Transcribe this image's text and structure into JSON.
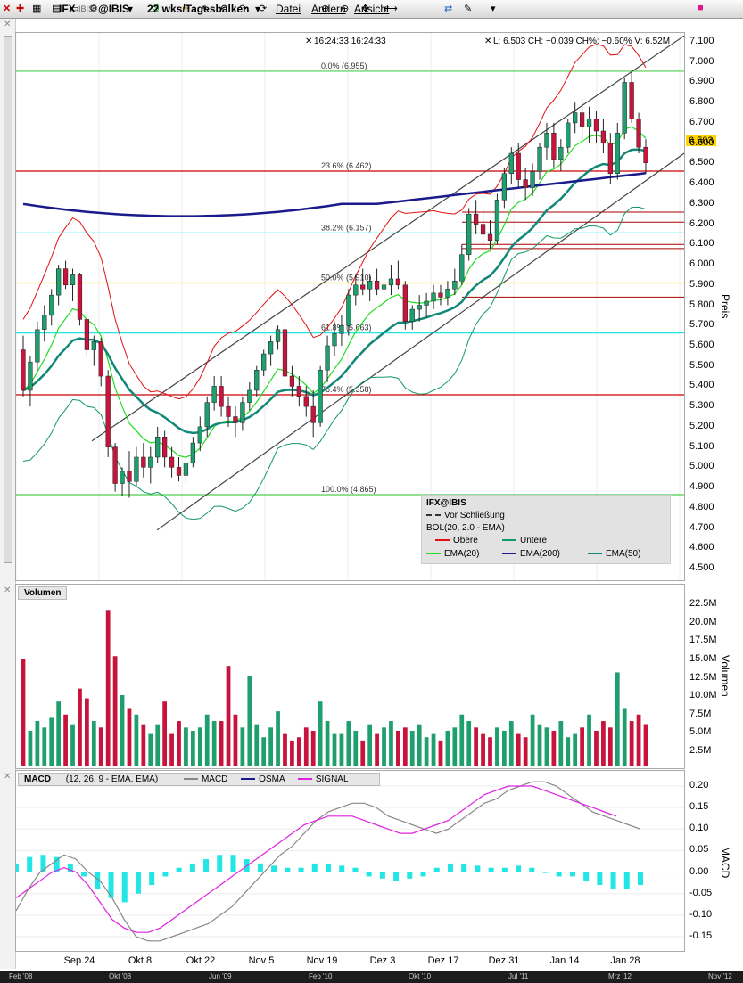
{
  "toolbar": {
    "symbol": "IFX",
    "exchange_small": "IBIS",
    "exchange": "@IBIS",
    "period": "22 wks/Tagesbalken",
    "menu": [
      "Datei",
      "Ändern",
      "Ansicht"
    ]
  },
  "header": {
    "time": "16:24:33 16:24:33",
    "quote": "L: 6.503 CH: −0.039 CH%: −0.60% V: 6.52M",
    "last_price": "6.503"
  },
  "price_axis": {
    "label": "Preis",
    "ticks": [
      "7.100",
      "7.000",
      "6.900",
      "6.800",
      "6.700",
      "6.600",
      "6.500",
      "6.400",
      "6.300",
      "6.200",
      "6.100",
      "6.000",
      "5.900",
      "5.800",
      "5.700",
      "5.600",
      "5.500",
      "5.400",
      "5.300",
      "5.200",
      "5.100",
      "5.000",
      "4.900",
      "4.800",
      "4.700",
      "4.600",
      "4.500"
    ]
  },
  "volume_axis": {
    "label": "Volumen",
    "ticks": [
      "22.5M",
      "20.0M",
      "17.5M",
      "15.0M",
      "12.5M",
      "10.0M",
      "7.5M",
      "5.0M",
      "2.5M"
    ]
  },
  "macd_axis": {
    "label": "MACD",
    "ticks": [
      "0.20",
      "0.15",
      "0.10",
      "0.05",
      "0.00",
      "-0.05",
      "-0.10",
      "-0.15"
    ]
  },
  "panels": {
    "volume_title": "Volumen",
    "macd_title": "MACD",
    "macd_params": "(12, 26, 9 - EMA, EMA)",
    "macd_legend": [
      "MACD",
      "OSMA",
      "SIGNAL"
    ]
  },
  "legend": {
    "title": "IFX@IBIS",
    "prev_close": "Vor Schließung",
    "bol": "BOL(20, 2.0 - EMA)",
    "upper": "Obere",
    "lower": "Untere",
    "ema20": "EMA(20)",
    "ema200": "EMA(200)",
    "ema50": "EMA(50)"
  },
  "fib_levels": [
    {
      "label": "0.0% (6.955)",
      "value": 6.955
    },
    {
      "label": "23.6% (6.462)",
      "value": 6.462
    },
    {
      "label": "38.2% (6.157)",
      "value": 6.157
    },
    {
      "label": "50.0% (5.910)",
      "value": 5.91
    },
    {
      "label": "61.8% (5.663)",
      "value": 5.663
    },
    {
      "label": "76.4% (5.358)",
      "value": 5.358
    },
    {
      "label": "100.0% (4.865)",
      "value": 4.865
    }
  ],
  "date_axis": [
    "Sep 24",
    "Okt 8",
    "Okt 22",
    "Nov 5",
    "Nov 19",
    "Dez 3",
    "Dez 17",
    "Dez 31",
    "Jan 14",
    "Jan 28"
  ],
  "overview_axis": [
    "Feb '08",
    "Okt '08",
    "Jun '09",
    "Feb '10",
    "Okt '10",
    "Jul '11",
    "Mrz '12",
    "Nov '12"
  ],
  "colors": {
    "up": "#1f9e6e",
    "down": "#c8143c",
    "ema20": "#22dd22",
    "ema50": "#118877",
    "ema200": "#1a1a8c",
    "bol_upper": "#e01010",
    "bol_lower": "#119966",
    "macd_line": "#888888",
    "signal": "#e020e0",
    "osma": "#22e6e6"
  },
  "chart_data": {
    "type": "candlestick",
    "ylim": [
      4.5,
      7.1
    ],
    "volume_ylim": [
      0,
      25
    ],
    "macd_ylim": [
      -0.175,
      0.225
    ],
    "candles": [
      [
        5.58,
        5.65,
        5.35,
        5.38
      ],
      [
        5.38,
        5.55,
        5.3,
        5.52
      ],
      [
        5.52,
        5.72,
        5.48,
        5.68
      ],
      [
        5.68,
        5.8,
        5.62,
        5.75
      ],
      [
        5.75,
        5.88,
        5.7,
        5.85
      ],
      [
        5.85,
        6.0,
        5.8,
        5.98
      ],
      [
        5.98,
        6.02,
        5.88,
        5.9
      ],
      [
        5.9,
        5.98,
        5.82,
        5.95
      ],
      [
        5.95,
        5.96,
        5.7,
        5.73
      ],
      [
        5.73,
        5.76,
        5.55,
        5.58
      ],
      [
        5.58,
        5.65,
        5.5,
        5.62
      ],
      [
        5.62,
        5.64,
        5.4,
        5.45
      ],
      [
        5.45,
        5.48,
        5.05,
        5.1
      ],
      [
        5.1,
        5.12,
        4.88,
        4.92
      ],
      [
        4.92,
        5.0,
        4.86,
        4.98
      ],
      [
        4.98,
        5.08,
        4.85,
        4.93
      ],
      [
        4.93,
        5.1,
        4.9,
        5.05
      ],
      [
        5.05,
        5.12,
        4.95,
        5.0
      ],
      [
        5.0,
        5.1,
        4.92,
        5.05
      ],
      [
        5.05,
        5.2,
        5.02,
        5.15
      ],
      [
        5.15,
        5.18,
        5.0,
        5.05
      ],
      [
        5.05,
        5.1,
        4.95,
        5.0
      ],
      [
        5.0,
        5.05,
        4.93,
        4.96
      ],
      [
        4.96,
        5.05,
        4.92,
        5.02
      ],
      [
        5.02,
        5.15,
        5.0,
        5.12
      ],
      [
        5.12,
        5.25,
        5.08,
        5.2
      ],
      [
        5.2,
        5.35,
        5.15,
        5.32
      ],
      [
        5.32,
        5.45,
        5.28,
        5.4
      ],
      [
        5.4,
        5.45,
        5.25,
        5.3
      ],
      [
        5.3,
        5.35,
        5.2,
        5.25
      ],
      [
        5.25,
        5.3,
        5.15,
        5.22
      ],
      [
        5.22,
        5.35,
        5.18,
        5.32
      ],
      [
        5.32,
        5.42,
        5.28,
        5.38
      ],
      [
        5.38,
        5.5,
        5.35,
        5.48
      ],
      [
        5.48,
        5.58,
        5.45,
        5.56
      ],
      [
        5.56,
        5.65,
        5.5,
        5.62
      ],
      [
        5.62,
        5.7,
        5.58,
        5.68
      ],
      [
        5.68,
        5.72,
        5.4,
        5.45
      ],
      [
        5.45,
        5.5,
        5.35,
        5.4
      ],
      [
        5.4,
        5.45,
        5.3,
        5.35
      ],
      [
        5.35,
        5.4,
        5.25,
        5.3
      ],
      [
        5.3,
        5.38,
        5.15,
        5.22
      ],
      [
        5.22,
        5.5,
        5.2,
        5.48
      ],
      [
        5.48,
        5.65,
        5.42,
        5.6
      ],
      [
        5.6,
        5.72,
        5.55,
        5.66
      ],
      [
        5.66,
        5.75,
        5.6,
        5.7
      ],
      [
        5.7,
        5.88,
        5.65,
        5.85
      ],
      [
        5.85,
        5.95,
        5.8,
        5.9
      ],
      [
        5.9,
        5.98,
        5.85,
        5.88
      ],
      [
        5.88,
        5.95,
        5.82,
        5.92
      ],
      [
        5.92,
        5.98,
        5.85,
        5.88
      ],
      [
        5.88,
        5.95,
        5.8,
        5.9
      ],
      [
        5.9,
        6.0,
        5.85,
        5.93
      ],
      [
        5.93,
        6.02,
        5.88,
        5.9
      ],
      [
        5.9,
        5.92,
        5.68,
        5.72
      ],
      [
        5.72,
        5.8,
        5.68,
        5.78
      ],
      [
        5.78,
        5.85,
        5.72,
        5.8
      ],
      [
        5.8,
        5.86,
        5.74,
        5.82
      ],
      [
        5.82,
        5.9,
        5.78,
        5.86
      ],
      [
        5.86,
        5.9,
        5.8,
        5.84
      ],
      [
        5.84,
        5.92,
        5.8,
        5.88
      ],
      [
        5.88,
        5.98,
        5.85,
        5.92
      ],
      [
        5.92,
        6.1,
        5.9,
        6.05
      ],
      [
        6.05,
        6.28,
        6.02,
        6.25
      ],
      [
        6.25,
        6.32,
        6.15,
        6.2
      ],
      [
        6.2,
        6.28,
        6.1,
        6.15
      ],
      [
        6.15,
        6.22,
        6.08,
        6.12
      ],
      [
        6.12,
        6.35,
        6.1,
        6.32
      ],
      [
        6.32,
        6.48,
        6.28,
        6.45
      ],
      [
        6.45,
        6.58,
        6.4,
        6.55
      ],
      [
        6.55,
        6.6,
        6.38,
        6.42
      ],
      [
        6.42,
        6.48,
        6.32,
        6.38
      ],
      [
        6.38,
        6.5,
        6.34,
        6.46
      ],
      [
        6.46,
        6.6,
        6.42,
        6.58
      ],
      [
        6.58,
        6.7,
        6.52,
        6.65
      ],
      [
        6.65,
        6.7,
        6.48,
        6.52
      ],
      [
        6.52,
        6.62,
        6.46,
        6.58
      ],
      [
        6.58,
        6.72,
        6.55,
        6.7
      ],
      [
        6.7,
        6.8,
        6.65,
        6.75
      ],
      [
        6.75,
        6.82,
        6.62,
        6.68
      ],
      [
        6.68,
        6.78,
        6.6,
        6.72
      ],
      [
        6.72,
        6.76,
        6.6,
        6.66
      ],
      [
        6.66,
        6.72,
        6.55,
        6.6
      ],
      [
        6.6,
        6.65,
        6.4,
        6.45
      ],
      [
        6.45,
        6.7,
        6.42,
        6.65
      ],
      [
        6.65,
        6.92,
        6.62,
        6.9
      ],
      [
        6.9,
        6.95,
        6.7,
        6.72
      ],
      [
        6.72,
        6.75,
        6.55,
        6.58
      ],
      [
        6.58,
        6.62,
        6.45,
        6.503
      ]
    ],
    "volume": [
      16.5,
      5.5,
      7.0,
      6.0,
      7.5,
      10.0,
      8.0,
      6.5,
      12.0,
      10.5,
      7.0,
      6.0,
      24.0,
      17.0,
      11.0,
      9.0,
      8.0,
      6.5,
      5.0,
      6.5,
      10.0,
      5.0,
      7.0,
      6.0,
      5.5,
      6.0,
      8.0,
      7.0,
      7.0,
      15.5,
      8.0,
      6.0,
      14.0,
      6.5,
      4.5,
      6.0,
      8.5,
      5.0,
      4.0,
      4.5,
      6.0,
      5.5,
      10.0,
      7.0,
      5.0,
      5.0,
      7.0,
      5.5,
      4.0,
      6.5,
      5.0,
      6.0,
      7.0,
      5.5,
      6.0,
      5.5,
      6.5,
      4.5,
      5.0,
      4.0,
      5.5,
      6.0,
      8.0,
      7.0,
      6.0,
      5.0,
      4.5,
      6.0,
      5.5,
      7.0,
      5.0,
      4.5,
      8.0,
      6.5,
      6.0,
      5.5,
      7.0,
      4.5,
      5.0,
      6.0,
      8.0,
      5.5,
      7.0,
      6.0,
      14.5,
      9.0,
      7.0,
      8.0,
      6.52
    ],
    "macd": [
      -0.09,
      -0.04,
      0.0,
      0.02,
      0.04,
      0.03,
      0.0,
      -0.02,
      -0.06,
      -0.11,
      -0.15,
      -0.16,
      -0.16,
      -0.15,
      -0.14,
      -0.13,
      -0.12,
      -0.1,
      -0.08,
      -0.05,
      -0.02,
      0.01,
      0.04,
      0.06,
      0.09,
      0.12,
      0.14,
      0.15,
      0.16,
      0.16,
      0.15,
      0.13,
      0.12,
      0.11,
      0.1,
      0.09,
      0.1,
      0.12,
      0.14,
      0.16,
      0.17,
      0.19,
      0.2,
      0.21,
      0.21,
      0.2,
      0.18,
      0.16,
      0.14,
      0.13,
      0.12,
      0.11,
      0.1
    ],
    "signal": [
      -0.06,
      -0.04,
      -0.02,
      0.0,
      0.01,
      0.0,
      -0.03,
      -0.07,
      -0.11,
      -0.13,
      -0.14,
      -0.14,
      -0.13,
      -0.11,
      -0.09,
      -0.07,
      -0.05,
      -0.03,
      -0.01,
      0.01,
      0.03,
      0.05,
      0.07,
      0.09,
      0.11,
      0.12,
      0.13,
      0.13,
      0.13,
      0.12,
      0.11,
      0.1,
      0.09,
      0.09,
      0.1,
      0.11,
      0.12,
      0.14,
      0.16,
      0.18,
      0.19,
      0.2,
      0.2,
      0.2,
      0.19,
      0.18,
      0.17,
      0.16,
      0.15,
      0.14,
      0.13
    ],
    "osma": [
      0.02,
      0.035,
      0.04,
      0.035,
      0.02,
      -0.01,
      -0.04,
      -0.06,
      -0.07,
      -0.05,
      -0.03,
      -0.01,
      0.01,
      0.02,
      0.03,
      0.04,
      0.04,
      0.03,
      0.02,
      0.015,
      0.01,
      0.01,
      0.02,
      0.02,
      0.015,
      0.01,
      -0.01,
      -0.015,
      -0.02,
      -0.015,
      -0.01,
      0.01,
      0.02,
      0.02,
      0.015,
      0.01,
      0.01,
      0.015,
      0.01,
      0.0,
      -0.01,
      -0.01,
      -0.02,
      -0.03,
      -0.04,
      -0.04,
      -0.03
    ]
  }
}
